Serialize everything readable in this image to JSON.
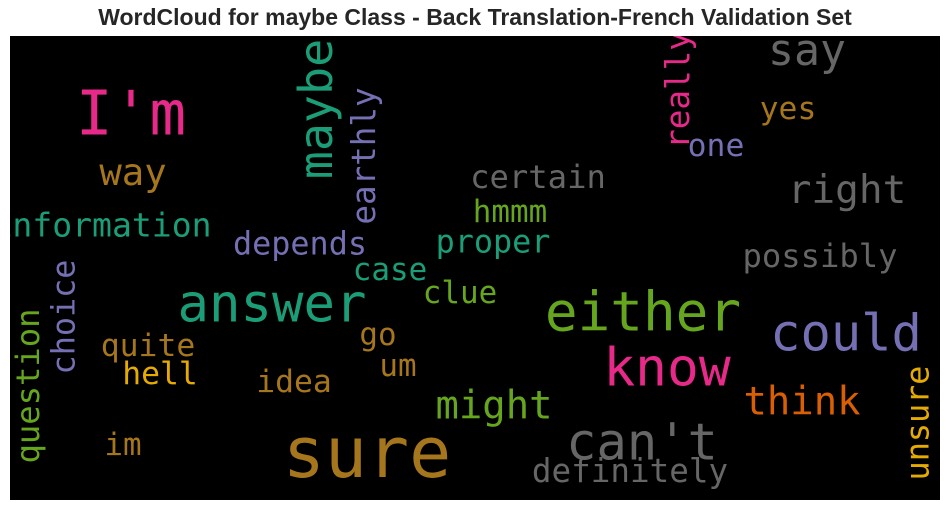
{
  "chart_data": {
    "type": "wordcloud",
    "title": "WordCloud for maybe Class - Back Translation-French Validation Set",
    "words": [
      {
        "text": "sure",
        "weight": 1.0,
        "color": "#a6761d",
        "rotate": 0
      },
      {
        "text": "I'm",
        "weight": 0.88,
        "color": "#e7298a",
        "rotate": 0
      },
      {
        "text": "answer",
        "weight": 0.75,
        "color": "#1b9e77",
        "rotate": 0
      },
      {
        "text": "either",
        "weight": 0.78,
        "color": "#66a61e",
        "rotate": 0
      },
      {
        "text": "know",
        "weight": 0.76,
        "color": "#e7298a",
        "rotate": 0
      },
      {
        "text": "can't",
        "weight": 0.72,
        "color": "#666666",
        "rotate": 0
      },
      {
        "text": "could",
        "weight": 0.72,
        "color": "#7570b3",
        "rotate": 0
      },
      {
        "text": "maybe",
        "weight": 0.66,
        "color": "#1b9e77",
        "rotate": -90
      },
      {
        "text": "say",
        "weight": 0.6,
        "color": "#666666",
        "rotate": 0
      },
      {
        "text": "right",
        "weight": 0.53,
        "color": "#666666",
        "rotate": 0
      },
      {
        "text": "think",
        "weight": 0.52,
        "color": "#d95f02",
        "rotate": 0
      },
      {
        "text": "might",
        "weight": 0.52,
        "color": "#66a61e",
        "rotate": 0
      },
      {
        "text": "way",
        "weight": 0.49,
        "color": "#a6761d",
        "rotate": 0
      },
      {
        "text": "information",
        "weight": 0.4,
        "color": "#1b9e77",
        "rotate": 0
      },
      {
        "text": "earthly",
        "weight": 0.39,
        "color": "#7570b3",
        "rotate": -90
      },
      {
        "text": "really",
        "weight": 0.39,
        "color": "#e7298a",
        "rotate": -90
      },
      {
        "text": "definitely",
        "weight": 0.39,
        "color": "#666666",
        "rotate": 0
      },
      {
        "text": "certain",
        "weight": 0.38,
        "color": "#666666",
        "rotate": 0
      },
      {
        "text": "possibly",
        "weight": 0.38,
        "color": "#666666",
        "rotate": 0
      },
      {
        "text": "question",
        "weight": 0.38,
        "color": "#66a61e",
        "rotate": -90
      },
      {
        "text": "unsure",
        "weight": 0.37,
        "color": "#e6ab02",
        "rotate": -90
      },
      {
        "text": "depends",
        "weight": 0.37,
        "color": "#7570b3",
        "rotate": 0
      },
      {
        "text": "proper",
        "weight": 0.37,
        "color": "#1b9e77",
        "rotate": 0
      },
      {
        "text": "choice",
        "weight": 0.37,
        "color": "#7570b3",
        "rotate": -90
      },
      {
        "text": "quite",
        "weight": 0.36,
        "color": "#a6761d",
        "rotate": 0
      },
      {
        "text": "hell",
        "weight": 0.36,
        "color": "#e6ab02",
        "rotate": 0
      },
      {
        "text": "idea",
        "weight": 0.36,
        "color": "#a6761d",
        "rotate": 0
      },
      {
        "text": "yes",
        "weight": 0.36,
        "color": "#a6761d",
        "rotate": 0
      },
      {
        "text": "one",
        "weight": 0.36,
        "color": "#7570b3",
        "rotate": 0
      },
      {
        "text": "hmmm",
        "weight": 0.35,
        "color": "#66a61e",
        "rotate": 0
      },
      {
        "text": "case",
        "weight": 0.35,
        "color": "#1b9e77",
        "rotate": 0
      },
      {
        "text": "clue",
        "weight": 0.35,
        "color": "#66a61e",
        "rotate": 0
      },
      {
        "text": "go",
        "weight": 0.35,
        "color": "#a6761d",
        "rotate": 0
      },
      {
        "text": "um",
        "weight": 0.35,
        "color": "#a6761d",
        "rotate": 0
      },
      {
        "text": "im",
        "weight": 0.35,
        "color": "#a6761d",
        "rotate": 0
      }
    ]
  }
}
